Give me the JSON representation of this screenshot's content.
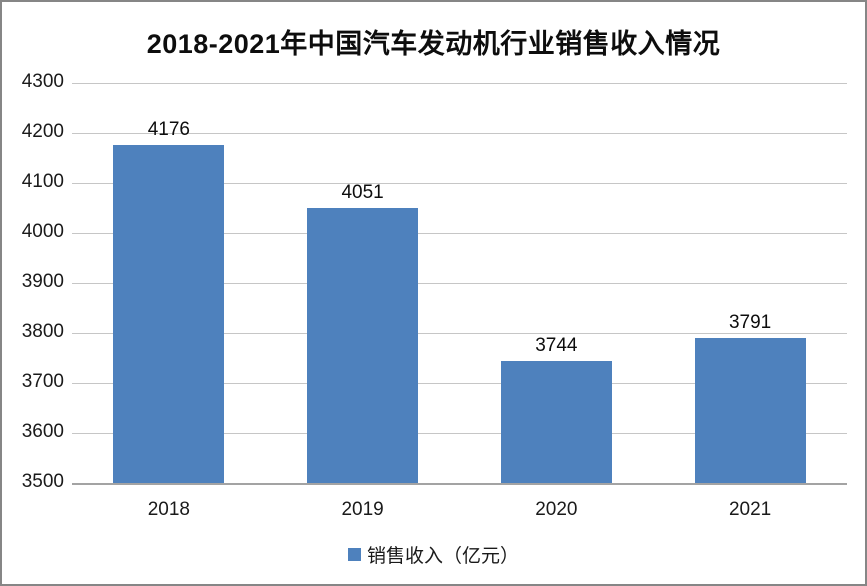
{
  "chart_data": {
    "type": "bar",
    "title": "2018-2021年中国汽车发动机行业销售收入情况",
    "categories": [
      "2018",
      "2019",
      "2020",
      "2021"
    ],
    "series": [
      {
        "name": "销售收入（亿元）",
        "values": [
          4176,
          4051,
          3744,
          3791
        ]
      }
    ],
    "data_labels": [
      "4176",
      "4051",
      "3744",
      "3791"
    ],
    "ylim": [
      3500,
      4300
    ],
    "ytick_step": 100,
    "ytick_labels": [
      "3500",
      "3600",
      "3700",
      "3800",
      "3900",
      "4000",
      "4100",
      "4200",
      "4300"
    ],
    "xlabel": "",
    "ylabel": "",
    "grid": true,
    "legend_position": "bottom",
    "bar_color": "#4E81BD",
    "gridline_color": "#C6C6C6",
    "axis_line_color": "#A3A3A3"
  },
  "legend": {
    "label": "销售收入（亿元）"
  }
}
